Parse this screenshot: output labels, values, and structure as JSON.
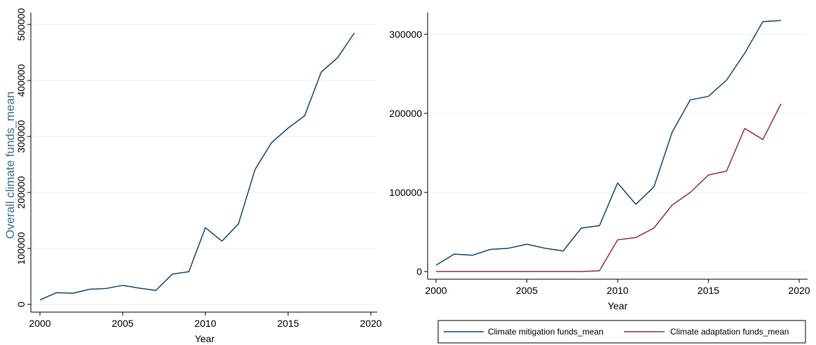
{
  "chart_data": [
    {
      "type": "line",
      "title": "",
      "xlabel": "Year",
      "ylabel": "Overall climate funds_mean",
      "ylabel_color": "#3f6f8f",
      "xlim": [
        2000,
        2020
      ],
      "ylim": [
        0,
        520000
      ],
      "xticks": [
        "2000",
        "2005",
        "2010",
        "2015",
        "2020"
      ],
      "yticks": [
        "0",
        "100000",
        "200000",
        "300000",
        "400000",
        "500000"
      ],
      "grid": "horizontal",
      "x": [
        2000,
        2001,
        2002,
        2003,
        2004,
        2005,
        2006,
        2007,
        2008,
        2009,
        2010,
        2011,
        2012,
        2013,
        2014,
        2015,
        2016,
        2017,
        2018,
        2019
      ],
      "series": [
        {
          "color": "#1a476f",
          "values": [
            8000,
            21000,
            20000,
            27000,
            28500,
            34000,
            29000,
            25000,
            54000,
            58500,
            137000,
            113000,
            144000,
            241000,
            289000,
            315000,
            337000,
            415000,
            441000,
            485000
          ]
        }
      ]
    },
    {
      "type": "line",
      "title": "",
      "xlabel": "Year",
      "ylabel": "",
      "xlim": [
        2000,
        2020
      ],
      "ylim": [
        -10000,
        325000
      ],
      "xticks": [
        "2000",
        "2005",
        "2010",
        "2015",
        "2020"
      ],
      "yticks": [
        "0",
        "100000",
        "200000",
        "300000"
      ],
      "grid": "horizontal",
      "legend": "bottom",
      "x": [
        2000,
        2001,
        2002,
        2003,
        2004,
        2005,
        2006,
        2007,
        2008,
        2009,
        2010,
        2011,
        2012,
        2013,
        2014,
        2015,
        2016,
        2017,
        2018,
        2019
      ],
      "series": [
        {
          "name": "Climate mitigation funds_mean",
          "color": "#1a476f",
          "values": [
            8000,
            22000,
            20500,
            28000,
            29500,
            34500,
            29500,
            26000,
            55000,
            58000,
            112000,
            85000,
            107000,
            176000,
            217000,
            221500,
            242000,
            276000,
            316000,
            317500
          ]
        },
        {
          "name": "Climate adaptation funds_mean",
          "color": "#90353b",
          "values": [
            0,
            0,
            0,
            0,
            0,
            0,
            0,
            0,
            0,
            1000,
            40000,
            43000,
            55000,
            84000,
            100000,
            122000,
            127000,
            181000,
            167000,
            212000
          ]
        }
      ]
    }
  ]
}
